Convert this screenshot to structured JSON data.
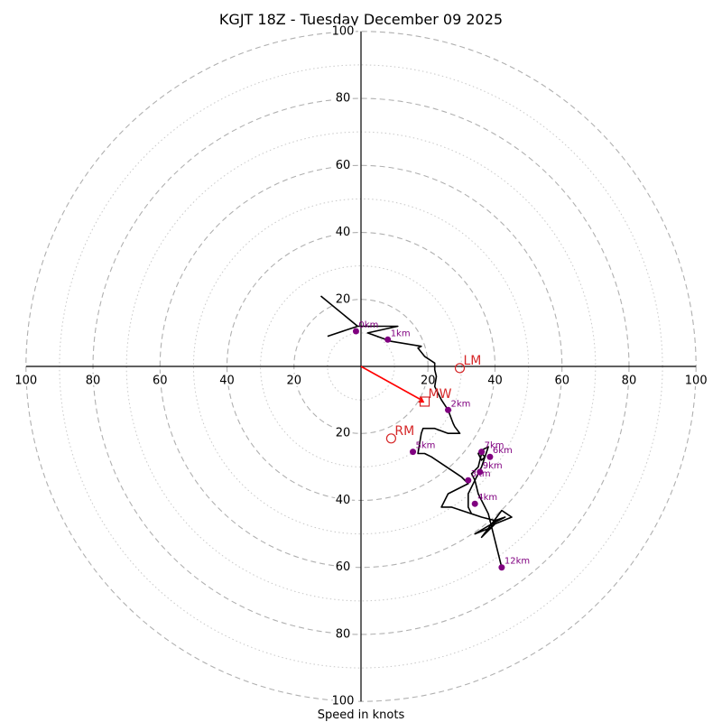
{
  "chart_data": {
    "type": "hodograph",
    "title": "KGJT 18Z - Tuesday December 09 2025",
    "xlabel": "Speed in knots",
    "range": [
      -100,
      100
    ],
    "ring_major": [
      20,
      40,
      60,
      80,
      100
    ],
    "ring_minor": [
      10,
      30,
      50,
      70,
      90
    ],
    "ticks": {
      "top": [
        "100",
        "80",
        "60",
        "40",
        "20"
      ],
      "bottom": [
        "20",
        "40",
        "60",
        "80",
        "100"
      ],
      "left": [
        "100",
        "80",
        "60",
        "40",
        "20"
      ],
      "right": [
        "20",
        "40",
        "60",
        "80",
        "100"
      ]
    },
    "colors": {
      "trace": "#000000",
      "heights": "#800080",
      "storm": "#d62728",
      "mean_wind_vector": "#ff0000",
      "grid": "#b0b0b0"
    },
    "trace": [
      [
        -10,
        9
      ],
      [
        -1,
        12
      ],
      [
        11,
        12
      ],
      [
        2,
        10
      ],
      [
        9,
        7.5
      ],
      [
        18,
        6
      ],
      [
        17,
        5.5
      ],
      [
        19,
        3
      ],
      [
        22,
        1
      ],
      [
        22,
        -1
      ],
      [
        22.5,
        -3
      ],
      [
        22,
        -6
      ],
      [
        24,
        -10
      ],
      [
        26,
        -13
      ],
      [
        27.5,
        -17
      ],
      [
        28,
        -18
      ],
      [
        29.5,
        -20
      ],
      [
        28,
        -20
      ],
      [
        26,
        -20
      ],
      [
        22,
        -18.5
      ],
      [
        18.5,
        -18.5
      ],
      [
        18,
        -20
      ],
      [
        17,
        -26
      ],
      [
        19,
        -26
      ],
      [
        21,
        -27
      ],
      [
        30,
        -33
      ],
      [
        32,
        -35
      ],
      [
        26,
        -38
      ],
      [
        24,
        -42
      ],
      [
        27,
        -42
      ],
      [
        30,
        -43
      ],
      [
        36,
        -45
      ],
      [
        40,
        -46
      ],
      [
        39,
        -48
      ],
      [
        34,
        -50
      ],
      [
        39,
        -47
      ],
      [
        42,
        -43
      ],
      [
        45,
        -45
      ],
      [
        40,
        -47
      ],
      [
        36,
        -51
      ],
      [
        39,
        -47
      ],
      [
        43,
        -45
      ],
      [
        40,
        -46
      ],
      [
        36,
        -45
      ],
      [
        33,
        -44
      ],
      [
        32,
        -42
      ],
      [
        32,
        -38
      ],
      [
        34,
        -34
      ],
      [
        33,
        -32
      ],
      [
        35,
        -30
      ],
      [
        36,
        -26
      ],
      [
        37,
        -27
      ],
      [
        36,
        -28
      ],
      [
        35,
        -26
      ],
      [
        36,
        -25
      ],
      [
        38,
        -24
      ],
      [
        36,
        -30
      ],
      [
        34,
        -34
      ],
      [
        35,
        -38
      ],
      [
        38,
        -44
      ],
      [
        42,
        -60
      ]
    ],
    "trace_top": [
      [
        -1,
        12
      ],
      [
        -12,
        21
      ]
    ],
    "height_markers": [
      {
        "label": "0km",
        "u": -1.5,
        "v": 10.5
      },
      {
        "label": "1km",
        "u": 8,
        "v": 8
      },
      {
        "label": "2km",
        "u": 26,
        "v": -13
      },
      {
        "label": "3km",
        "u": 32,
        "v": -34
      },
      {
        "label": "4km",
        "u": 34,
        "v": -41
      },
      {
        "label": "5km",
        "u": 15.5,
        "v": -25.5
      },
      {
        "label": "6km",
        "u": 38.5,
        "v": -27
      },
      {
        "label": "7km",
        "u": 36,
        "v": -25.5
      },
      {
        "label": "9km",
        "u": 35.5,
        "v": -31.5
      },
      {
        "label": "12km",
        "u": 42,
        "v": -60
      }
    ],
    "storm_motion": [
      {
        "label": "LM",
        "u": 29.5,
        "v": -0.5,
        "marker": "circle"
      },
      {
        "label": "MW",
        "u": 19,
        "v": -10.5,
        "marker": "square"
      },
      {
        "label": "RM",
        "u": 9,
        "v": -21.5,
        "marker": "circle"
      }
    ],
    "mean_wind_vector": {
      "u": 18,
      "v": -10
    }
  }
}
